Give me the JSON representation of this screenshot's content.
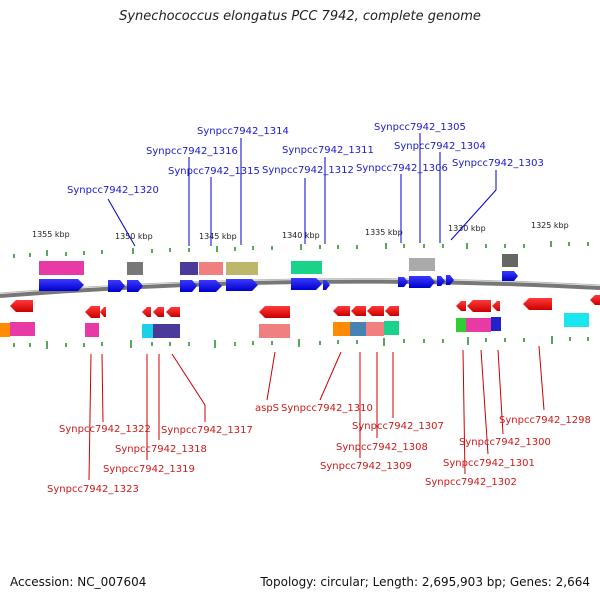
{
  "title": "Synechococcus elongatus PCC 7942, complete genome",
  "accession": "Accession: NC_007604",
  "summary": "Topology: circular; Length: 2,695,903 bp; Genes: 2,664",
  "scale_labels": [
    "1355 kbp",
    "1350 kbp",
    "1345 kbp",
    "1340 kbp",
    "1335 kbp",
    "1330 kbp",
    "1325 kbp"
  ],
  "forward_genes": [
    "Synpcc7942_1320",
    "Synpcc7942_1316",
    "Synpcc7942_1315",
    "Synpcc7942_1314",
    "Synpcc7942_1312",
    "Synpcc7942_1311",
    "Synpcc7942_1306",
    "Synpcc7942_1305",
    "Synpcc7942_1304",
    "Synpcc7942_1303"
  ],
  "reverse_genes": [
    "Synpcc7942_1323",
    "Synpcc7942_1322",
    "Synpcc7942_1319",
    "Synpcc7942_1318",
    "Synpcc7942_1317",
    "aspS",
    "Synpcc7942_1310",
    "Synpcc7942_1309",
    "Synpcc7942_1308",
    "Synpcc7942_1307",
    "Synpcc7942_1302",
    "Synpcc7942_1301",
    "Synpcc7942_1300",
    "Synpcc7942_1298"
  ],
  "colors": {
    "forward_label": "#1a1acc",
    "reverse_label": "#cc1a1a",
    "forward_gene": "#0000ee",
    "reverse_gene": "#ee0000",
    "backbone": "#777777",
    "tick": "#228822"
  }
}
